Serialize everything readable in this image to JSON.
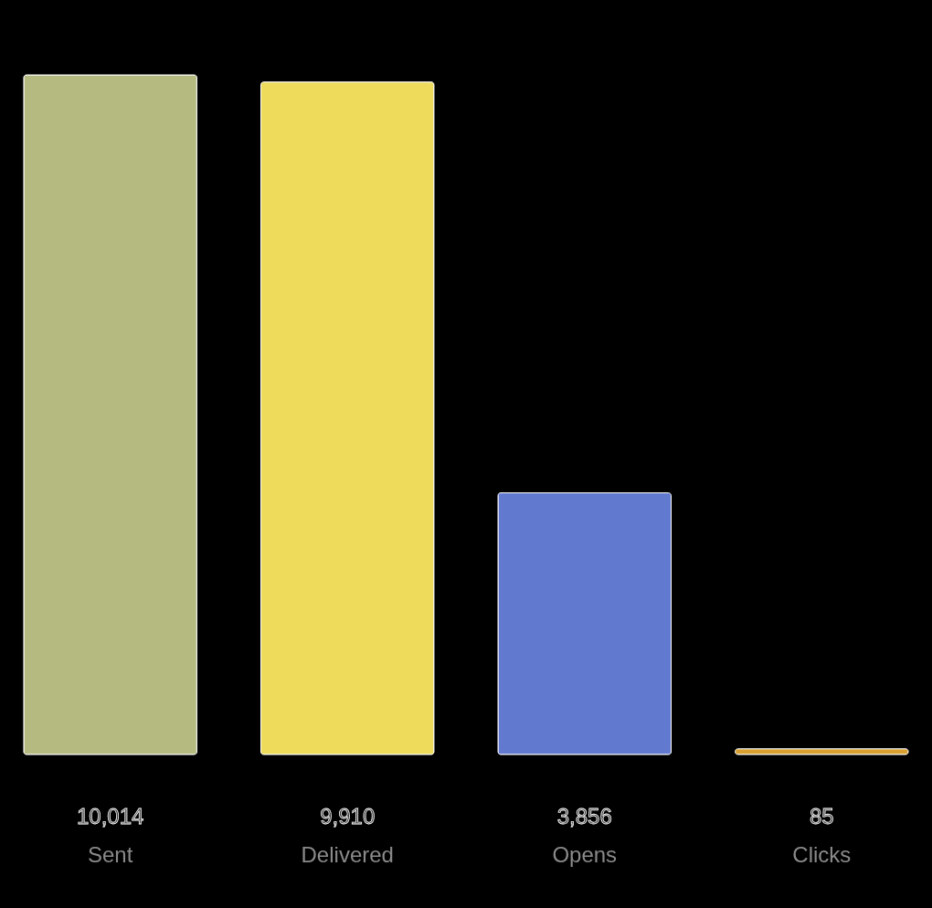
{
  "chart_data": {
    "type": "bar",
    "categories": [
      "Sent",
      "Delivered",
      "Opens",
      "Clicks"
    ],
    "values": [
      10014,
      9910,
      3856,
      85
    ],
    "colors": [
      "#b5bb80",
      "#eedb5c",
      "#6279d0",
      "#d9a030"
    ],
    "value_labels": [
      "10,014",
      "9,910",
      "3,856",
      "85"
    ]
  }
}
